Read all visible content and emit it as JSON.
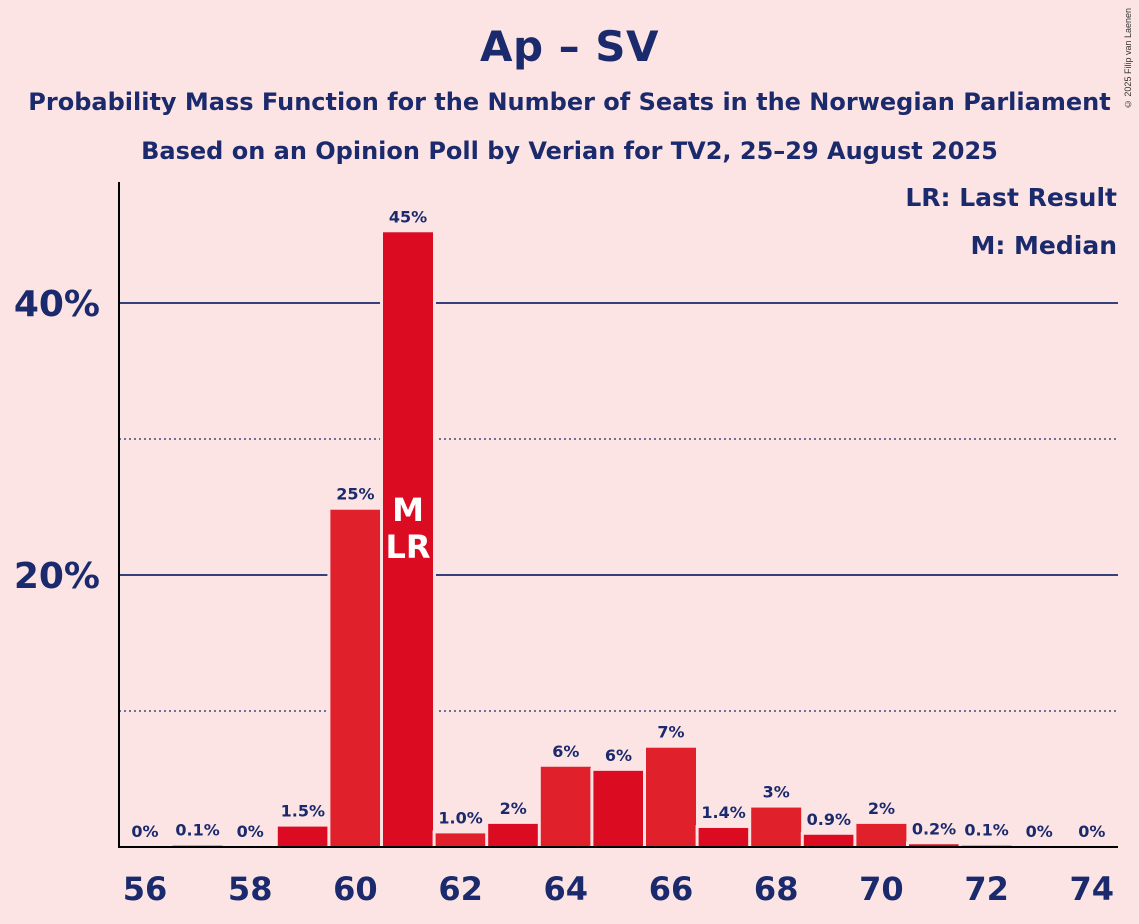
{
  "chart_data": {
    "type": "bar",
    "title": "Ap – SV",
    "subtitle_lines": [
      "Probability Mass Function for the Number of Seats in the Norwegian Parliament",
      "Based on an Opinion Poll by Verian for TV2, 25–29 August 2025"
    ],
    "categories": [
      56,
      57,
      58,
      59,
      60,
      61,
      62,
      63,
      64,
      65,
      66,
      67,
      68,
      69,
      70,
      71,
      72,
      73,
      74
    ],
    "values": [
      0,
      0.1,
      0,
      1.5,
      24.8,
      45.2,
      1.0,
      1.7,
      5.9,
      5.6,
      7.3,
      1.4,
      2.9,
      0.9,
      1.7,
      0.2,
      0.1,
      0,
      0
    ],
    "value_labels": [
      "0%",
      "0.1%",
      "0%",
      "1.5%",
      "25%",
      "45%",
      "1.0%",
      "2%",
      "6%",
      "6%",
      "7%",
      "1.4%",
      "3%",
      "0.9%",
      "2%",
      "0.2%",
      "0.1%",
      "0%",
      "0%"
    ],
    "x_tick_labels": [
      "56",
      "58",
      "60",
      "62",
      "64",
      "66",
      "68",
      "70",
      "72",
      "74"
    ],
    "y_tick_labels": [
      {
        "value": 20,
        "label": "20%"
      },
      {
        "value": 40,
        "label": "40%"
      }
    ],
    "minor_gridlines": [
      10,
      30
    ],
    "ylim": [
      0,
      49
    ],
    "median_seat": 61,
    "last_result_seat": 61,
    "bar_marker_labels": [
      "M",
      "LR"
    ],
    "legend": {
      "placement": "top-right",
      "entries": [
        "LR: Last Result",
        "M: Median"
      ]
    },
    "colors": {
      "bar_even": "#e0202a",
      "bar_odd": "#db0c22",
      "text": "#1a2a6c",
      "background": "#fde4e4",
      "grid": "#1a2a6c"
    }
  },
  "copyright": "© 2025 Filip van Laenen"
}
